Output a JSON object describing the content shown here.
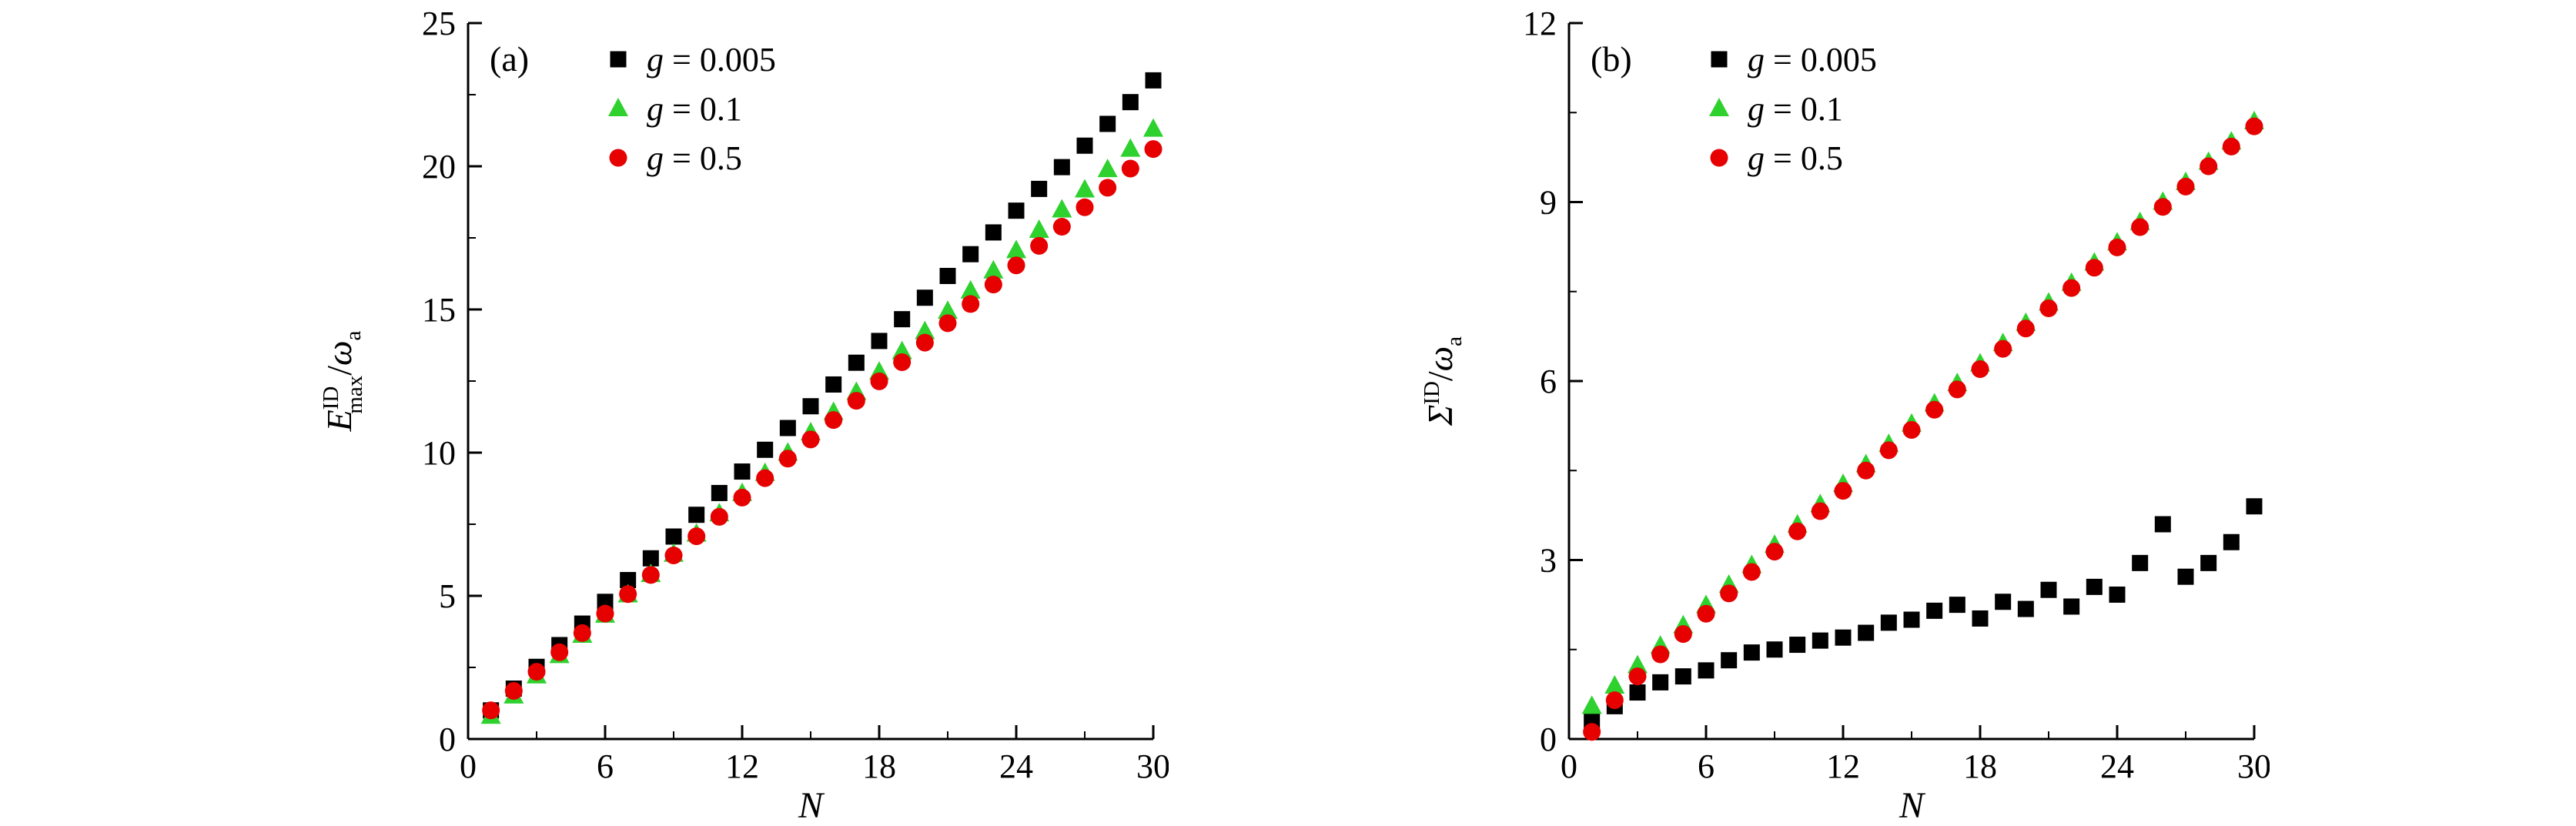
{
  "figure": {
    "background": "#ffffff",
    "panel_count": 2
  },
  "chart_data": [
    {
      "type": "scatter",
      "panel_label": "(a)",
      "xlabel": "N",
      "ylabel_plain": "E_max^ID / omega_a",
      "ylabel_segments": [
        {
          "text": "E",
          "style": "italic"
        },
        {
          "text": "ID",
          "style": "sup"
        },
        {
          "text": "max",
          "style": "sub-under"
        },
        {
          "text": "/",
          "style": "normal"
        },
        {
          "text": "ω",
          "style": "italic"
        },
        {
          "text": "a",
          "style": "sub"
        }
      ],
      "xlim": [
        0,
        30
      ],
      "ylim": [
        0,
        25
      ],
      "xticks": [
        0,
        6,
        12,
        18,
        24,
        30
      ],
      "yticks": [
        0,
        5,
        10,
        15,
        20,
        25
      ],
      "x_minor_step": 3,
      "y_minor_step": 2.5,
      "legend_position": "top-left",
      "grid": false,
      "x": [
        1,
        2,
        3,
        4,
        5,
        6,
        7,
        8,
        9,
        10,
        11,
        12,
        13,
        14,
        15,
        16,
        17,
        18,
        19,
        20,
        21,
        22,
        23,
        24,
        25,
        26,
        27,
        28,
        29,
        30
      ],
      "series": [
        {
          "name": "g = 0.005",
          "marker": "square",
          "color": "#000000",
          "values": [
            1.0,
            1.76,
            2.52,
            3.28,
            4.03,
            4.79,
            5.55,
            6.31,
            7.07,
            7.83,
            8.59,
            9.34,
            10.1,
            10.86,
            11.62,
            12.38,
            13.14,
            13.9,
            14.66,
            15.41,
            16.17,
            16.93,
            17.69,
            18.45,
            19.21,
            19.97,
            20.72,
            21.48,
            22.24,
            23.0
          ]
        },
        {
          "name": "g = 0.1",
          "marker": "triangle",
          "color": "#2ed12e",
          "values": [
            0.8,
            1.51,
            2.21,
            2.92,
            3.63,
            4.33,
            5.04,
            5.75,
            6.46,
            7.16,
            7.87,
            8.58,
            9.28,
            9.99,
            10.7,
            11.41,
            12.11,
            12.82,
            13.53,
            14.23,
            14.94,
            15.65,
            16.35,
            17.06,
            17.77,
            18.48,
            19.18,
            19.89,
            20.6,
            21.3
          ]
        },
        {
          "name": "g = 0.5",
          "marker": "circle",
          "color": "#e60000",
          "values": [
            1.0,
            1.68,
            2.35,
            3.03,
            3.7,
            4.38,
            5.06,
            5.73,
            6.41,
            7.08,
            7.76,
            8.43,
            9.11,
            9.79,
            10.46,
            11.14,
            11.81,
            12.49,
            13.16,
            13.84,
            14.52,
            15.19,
            15.87,
            16.54,
            17.22,
            17.89,
            18.57,
            19.25,
            19.92,
            20.6
          ]
        }
      ]
    },
    {
      "type": "scatter",
      "panel_label": "(b)",
      "xlabel": "N",
      "ylabel_plain": "Sigma^ID / omega_a",
      "ylabel_segments": [
        {
          "text": "Σ",
          "style": "italic"
        },
        {
          "text": "ID",
          "style": "sup"
        },
        {
          "text": "/",
          "style": "normal"
        },
        {
          "text": "ω",
          "style": "italic"
        },
        {
          "text": "a",
          "style": "sub"
        }
      ],
      "xlim": [
        0,
        30
      ],
      "ylim": [
        0,
        12
      ],
      "xticks": [
        0,
        6,
        12,
        18,
        24,
        30
      ],
      "yticks": [
        0,
        3,
        6,
        9,
        12
      ],
      "x_minor_step": 3,
      "y_minor_step": 1.5,
      "legend_position": "top-left",
      "grid": false,
      "x": [
        1,
        2,
        3,
        4,
        5,
        6,
        7,
        8,
        9,
        10,
        11,
        12,
        13,
        14,
        15,
        16,
        17,
        18,
        19,
        20,
        21,
        22,
        23,
        24,
        25,
        26,
        27,
        28,
        29,
        30
      ],
      "series": [
        {
          "name": "g = 0.005",
          "marker": "square",
          "color": "#000000",
          "values": [
            0.3,
            0.55,
            0.78,
            0.95,
            1.05,
            1.15,
            1.32,
            1.45,
            1.5,
            1.58,
            1.65,
            1.7,
            1.78,
            1.95,
            2.0,
            2.15,
            2.25,
            2.02,
            2.3,
            2.18,
            2.5,
            2.22,
            2.55,
            2.42,
            2.95,
            3.6,
            2.72,
            2.95,
            3.3,
            3.9
          ]
        },
        {
          "name": "g = 0.1",
          "marker": "triangle",
          "color": "#2ed12e",
          "values": [
            0.55,
            0.89,
            1.23,
            1.56,
            1.9,
            2.24,
            2.58,
            2.91,
            3.25,
            3.59,
            3.93,
            4.27,
            4.6,
            4.94,
            5.28,
            5.62,
            5.96,
            6.29,
            6.63,
            6.97,
            7.31,
            7.64,
            7.98,
            8.32,
            8.66,
            9.0,
            9.33,
            9.67,
            10.01,
            10.35
          ]
        },
        {
          "name": "g = 0.5",
          "marker": "circle",
          "color": "#e60000",
          "values": [
            0.12,
            0.65,
            1.05,
            1.42,
            1.76,
            2.1,
            2.44,
            2.8,
            3.14,
            3.48,
            3.82,
            4.16,
            4.5,
            4.84,
            5.18,
            5.52,
            5.86,
            6.2,
            6.54,
            6.88,
            7.22,
            7.56,
            7.9,
            8.24,
            8.58,
            8.92,
            9.26,
            9.6,
            9.93,
            10.27
          ]
        }
      ]
    }
  ]
}
